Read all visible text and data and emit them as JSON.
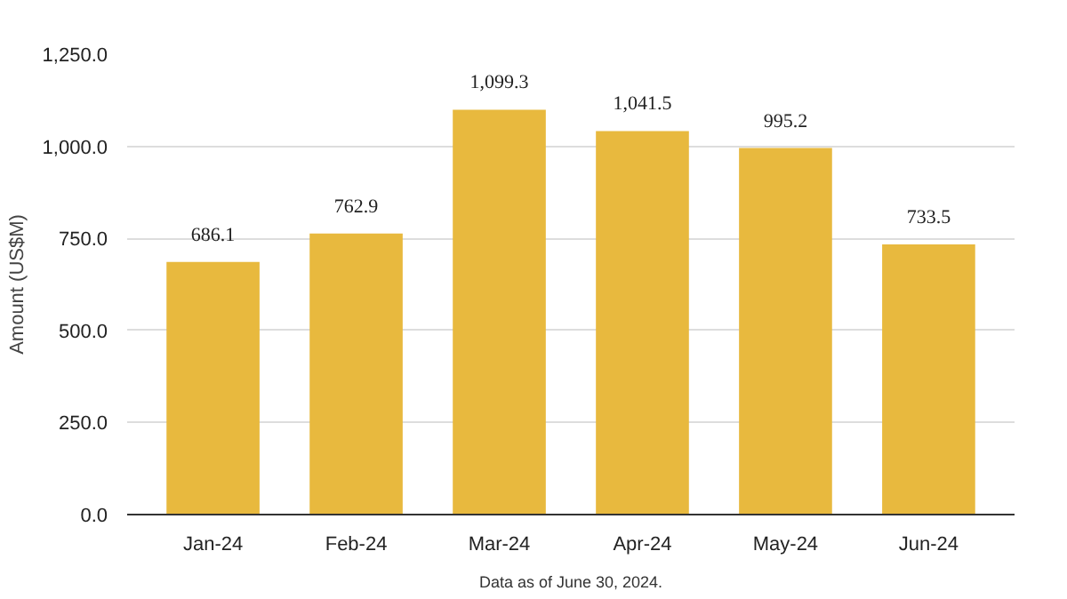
{
  "chart_data": {
    "type": "bar",
    "ylabel": "Amount (US$M)",
    "categories": [
      "Jan-24",
      "Feb-24",
      "Mar-24",
      "Apr-24",
      "May-24",
      "Jun-24"
    ],
    "values": [
      686.1,
      762.9,
      1099.3,
      1041.5,
      995.2,
      733.5
    ],
    "value_labels": [
      "686.1",
      "762.9",
      "1,099.3",
      "1,041.5",
      "995.2",
      "733.5"
    ],
    "color": "#e8b93e",
    "ylim": [
      0,
      1250
    ],
    "yticks": [
      {
        "value": 0,
        "label": "0.0"
      },
      {
        "value": 250,
        "label": "250.0"
      },
      {
        "value": 500,
        "label": "500.0"
      },
      {
        "value": 750,
        "label": "750.0"
      },
      {
        "value": 1000,
        "label": "1,000.0"
      },
      {
        "value": 1250,
        "label": "1,250.0"
      }
    ],
    "grid": "y",
    "annotations": [
      "Data as of June 30, 2024."
    ]
  }
}
